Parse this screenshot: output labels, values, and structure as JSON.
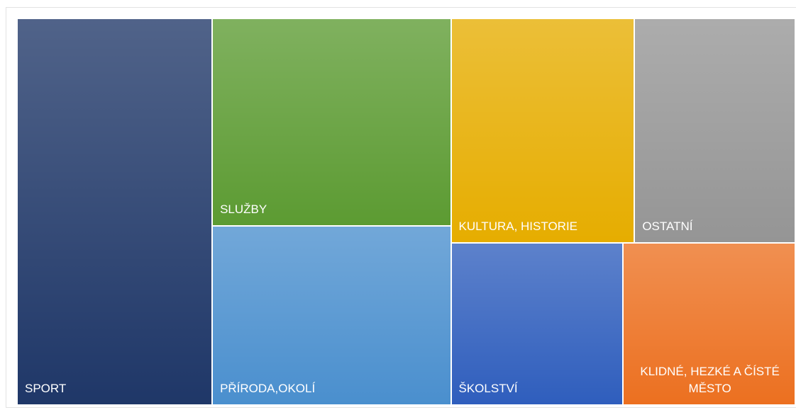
{
  "chart_data": {
    "type": "treemap",
    "categories": [
      "SPORT",
      "SLUŽBY",
      "PŘÍRODA,OKOLÍ",
      "KULTURA, HISTORIE",
      "OSTATNÍ",
      "ŠKOLSTVÍ",
      "KLIDNÉ, HEZKÉ A ČÍSTÉ MĚSTO"
    ],
    "values": [
      25.1,
      16.5,
      14.2,
      13.7,
      12.0,
      9.3,
      9.3
    ],
    "colors": [
      "#1f3768",
      "#5c9b32",
      "#4a8fce",
      "#e6ad00",
      "#959595",
      "#2f5ebd",
      "#ec7020"
    ]
  }
}
